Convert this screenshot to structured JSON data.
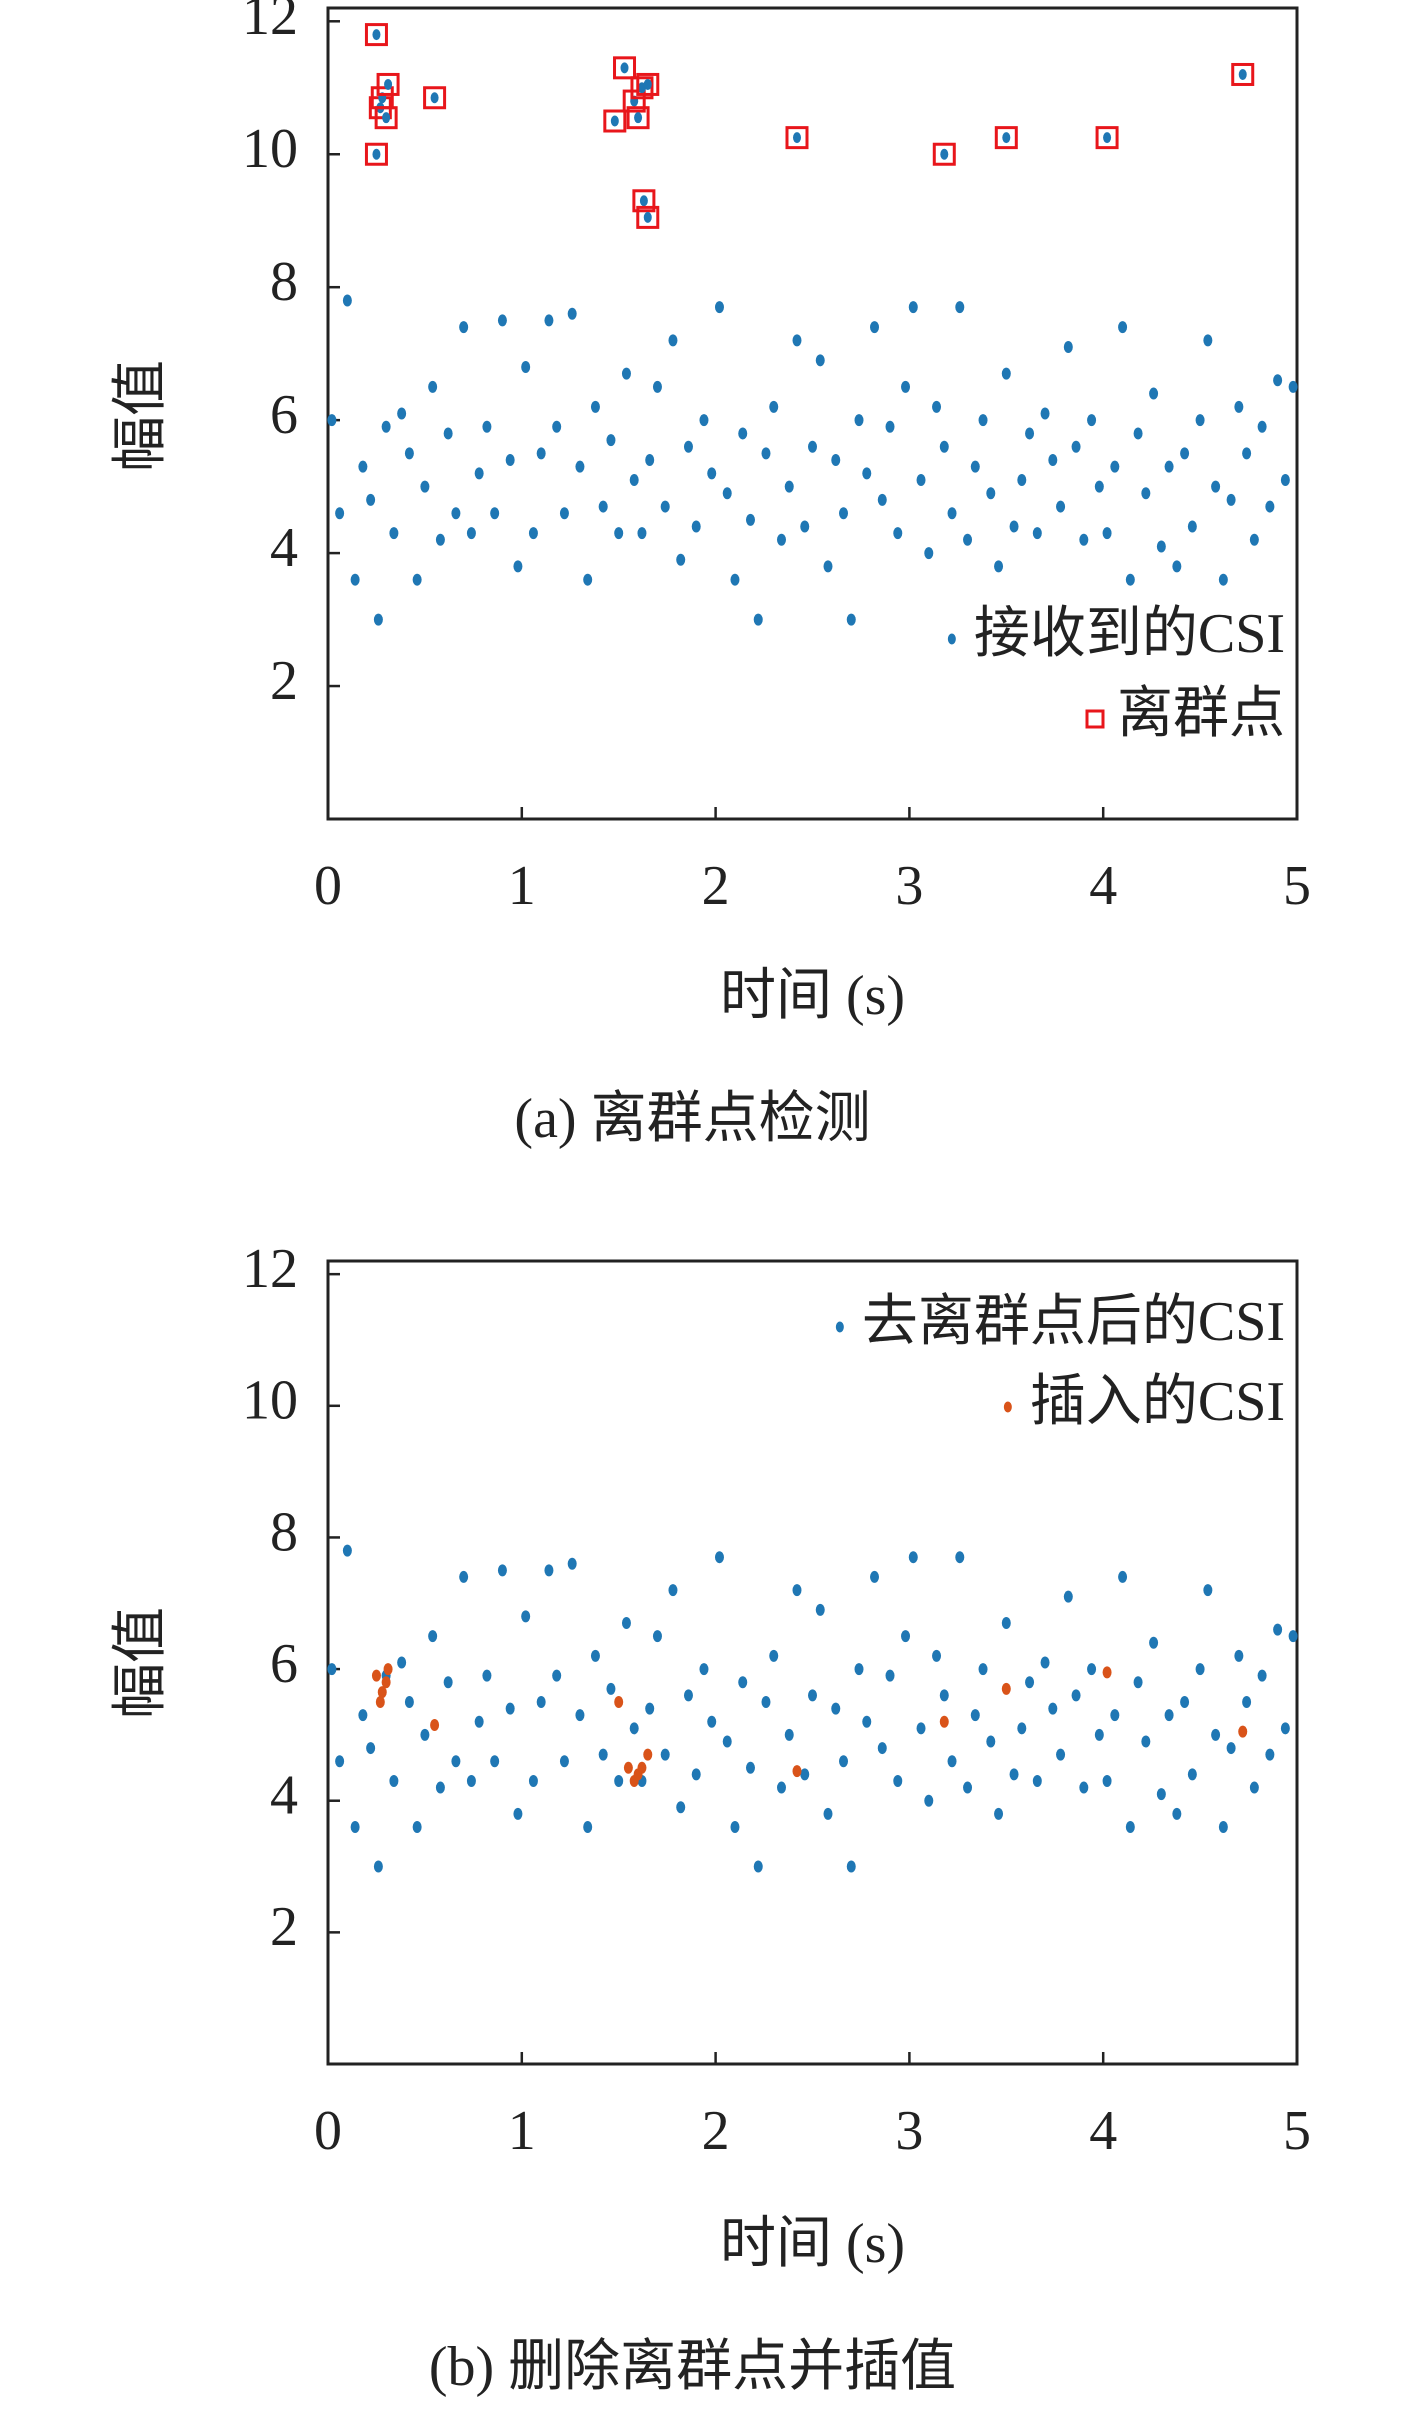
{
  "chart_data": [
    {
      "type": "scatter",
      "xlabel": "时间 (s)",
      "ylabel": "幅值",
      "caption": "(a) 离群点检测",
      "xlim": [
        0,
        5
      ],
      "ylim": [
        0,
        12.2
      ],
      "xticks": [
        0,
        1,
        2,
        3,
        4,
        5
      ],
      "yticks": [
        2,
        4,
        6,
        8,
        10,
        12
      ],
      "legend": "lower right",
      "series": [
        {
          "name": "接收到的CSI",
          "color": "#1f77b4",
          "marker": "dot",
          "x": [
            0.02,
            0.06,
            0.1,
            0.14,
            0.18,
            0.22,
            0.26,
            0.3,
            0.34,
            0.38,
            0.42,
            0.46,
            0.5,
            0.54,
            0.58,
            0.62,
            0.66,
            0.7,
            0.74,
            0.78,
            0.82,
            0.86,
            0.9,
            0.94,
            0.98,
            1.02,
            1.06,
            1.1,
            1.14,
            1.18,
            1.22,
            1.26,
            1.3,
            1.34,
            1.38,
            1.42,
            1.46,
            1.5,
            1.54,
            1.58,
            1.62,
            1.66,
            1.7,
            1.74,
            1.78,
            1.82,
            1.86,
            1.9,
            1.94,
            1.98,
            2.02,
            2.06,
            2.1,
            2.14,
            2.18,
            2.22,
            2.26,
            2.3,
            2.34,
            2.38,
            2.42,
            2.46,
            2.5,
            2.54,
            2.58,
            2.62,
            2.66,
            2.7,
            2.74,
            2.78,
            2.82,
            2.86,
            2.9,
            2.94,
            2.98,
            3.02,
            3.06,
            3.1,
            3.14,
            3.18,
            3.22,
            3.26,
            3.3,
            3.34,
            3.38,
            3.42,
            3.46,
            3.5,
            3.54,
            3.58,
            3.62,
            3.66,
            3.7,
            3.74,
            3.78,
            3.82,
            3.86,
            3.9,
            3.94,
            3.98,
            4.02,
            4.06,
            4.1,
            4.14,
            4.18,
            4.22,
            4.26,
            4.3,
            4.34,
            4.38,
            4.42,
            4.46,
            4.5,
            4.54,
            4.58,
            4.62,
            4.66,
            4.7,
            4.74,
            4.78,
            4.82,
            4.86,
            4.9,
            4.94,
            4.98
          ],
          "values": [
            6.0,
            4.6,
            7.8,
            3.6,
            5.3,
            4.8,
            3.0,
            5.9,
            4.3,
            6.1,
            5.5,
            3.6,
            5.0,
            6.5,
            4.2,
            5.8,
            4.6,
            7.4,
            4.3,
            5.2,
            5.9,
            4.6,
            7.5,
            5.4,
            3.8,
            6.8,
            4.3,
            5.5,
            7.5,
            5.9,
            4.6,
            7.6,
            5.3,
            3.6,
            6.2,
            4.7,
            5.7,
            4.3,
            6.7,
            5.1,
            4.3,
            5.4,
            6.5,
            4.7,
            7.2,
            3.9,
            5.6,
            4.4,
            6.0,
            5.2,
            7.7,
            4.9,
            3.6,
            5.8,
            4.5,
            3.0,
            5.5,
            6.2,
            4.2,
            5.0,
            7.2,
            4.4,
            5.6,
            6.9,
            3.8,
            5.4,
            4.6,
            3.0,
            6.0,
            5.2,
            7.4,
            4.8,
            5.9,
            4.3,
            6.5,
            7.7,
            5.1,
            4.0,
            6.2,
            5.6,
            4.6,
            7.7,
            4.2,
            5.3,
            6.0,
            4.9,
            3.8,
            6.7,
            4.4,
            5.1,
            5.8,
            4.3,
            6.1,
            5.4,
            4.7,
            7.1,
            5.6,
            4.2,
            6.0,
            5.0,
            4.3,
            5.3,
            7.4,
            3.6,
            5.8,
            4.9,
            6.4,
            4.1,
            5.3,
            3.8,
            5.5,
            4.4,
            6.0,
            7.2,
            5.0,
            3.6,
            4.8,
            6.2,
            5.5,
            4.2,
            5.9,
            4.7,
            6.6,
            5.1,
            6.5
          ]
        },
        {
          "name": "离群点",
          "color": "#e8161b",
          "marker": "square",
          "x": [
            0.25,
            0.27,
            0.28,
            0.3,
            0.31,
            0.25,
            0.55,
            1.48,
            1.53,
            1.58,
            1.6,
            1.62,
            1.65,
            1.63,
            1.65,
            2.42,
            3.18,
            3.5,
            4.02,
            4.72
          ],
          "values": [
            11.8,
            10.7,
            10.85,
            10.55,
            11.05,
            10.0,
            10.85,
            10.5,
            11.3,
            10.8,
            10.55,
            11.0,
            11.05,
            9.3,
            9.05,
            10.25,
            10.0,
            10.25,
            10.25,
            11.2
          ]
        }
      ]
    },
    {
      "type": "scatter",
      "xlabel": "时间 (s)",
      "ylabel": "幅值",
      "caption": "(b) 删除离群点并插值",
      "xlim": [
        0,
        5
      ],
      "ylim": [
        0,
        12.2
      ],
      "xticks": [
        0,
        1,
        2,
        3,
        4,
        5
      ],
      "yticks": [
        2,
        4,
        6,
        8,
        10,
        12
      ],
      "legend": "upper right",
      "series": [
        {
          "name": "去离群点后的CSI",
          "color": "#1f77b4",
          "marker": "dot",
          "x": [
            0.02,
            0.06,
            0.1,
            0.14,
            0.18,
            0.22,
            0.26,
            0.3,
            0.34,
            0.38,
            0.42,
            0.46,
            0.5,
            0.54,
            0.58,
            0.62,
            0.66,
            0.7,
            0.74,
            0.78,
            0.82,
            0.86,
            0.9,
            0.94,
            0.98,
            1.02,
            1.06,
            1.1,
            1.14,
            1.18,
            1.22,
            1.26,
            1.3,
            1.34,
            1.38,
            1.42,
            1.46,
            1.5,
            1.54,
            1.58,
            1.62,
            1.66,
            1.7,
            1.74,
            1.78,
            1.82,
            1.86,
            1.9,
            1.94,
            1.98,
            2.02,
            2.06,
            2.1,
            2.14,
            2.18,
            2.22,
            2.26,
            2.3,
            2.34,
            2.38,
            2.42,
            2.46,
            2.5,
            2.54,
            2.58,
            2.62,
            2.66,
            2.7,
            2.74,
            2.78,
            2.82,
            2.86,
            2.9,
            2.94,
            2.98,
            3.02,
            3.06,
            3.1,
            3.14,
            3.18,
            3.22,
            3.26,
            3.3,
            3.34,
            3.38,
            3.42,
            3.46,
            3.5,
            3.54,
            3.58,
            3.62,
            3.66,
            3.7,
            3.74,
            3.78,
            3.82,
            3.86,
            3.9,
            3.94,
            3.98,
            4.02,
            4.06,
            4.1,
            4.14,
            4.18,
            4.22,
            4.26,
            4.3,
            4.34,
            4.38,
            4.42,
            4.46,
            4.5,
            4.54,
            4.58,
            4.62,
            4.66,
            4.7,
            4.74,
            4.78,
            4.82,
            4.86,
            4.9,
            4.94,
            4.98
          ],
          "values": [
            6.0,
            4.6,
            7.8,
            3.6,
            5.3,
            4.8,
            3.0,
            5.9,
            4.3,
            6.1,
            5.5,
            3.6,
            5.0,
            6.5,
            4.2,
            5.8,
            4.6,
            7.4,
            4.3,
            5.2,
            5.9,
            4.6,
            7.5,
            5.4,
            3.8,
            6.8,
            4.3,
            5.5,
            7.5,
            5.9,
            4.6,
            7.6,
            5.3,
            3.6,
            6.2,
            4.7,
            5.7,
            4.3,
            6.7,
            5.1,
            4.3,
            5.4,
            6.5,
            4.7,
            7.2,
            3.9,
            5.6,
            4.4,
            6.0,
            5.2,
            7.7,
            4.9,
            3.6,
            5.8,
            4.5,
            3.0,
            5.5,
            6.2,
            4.2,
            5.0,
            7.2,
            4.4,
            5.6,
            6.9,
            3.8,
            5.4,
            4.6,
            3.0,
            6.0,
            5.2,
            7.4,
            4.8,
            5.9,
            4.3,
            6.5,
            7.7,
            5.1,
            4.0,
            6.2,
            5.6,
            4.6,
            7.7,
            4.2,
            5.3,
            6.0,
            4.9,
            3.8,
            6.7,
            4.4,
            5.1,
            5.8,
            4.3,
            6.1,
            5.4,
            4.7,
            7.1,
            5.6,
            4.2,
            6.0,
            5.0,
            4.3,
            5.3,
            7.4,
            3.6,
            5.8,
            4.9,
            6.4,
            4.1,
            5.3,
            3.8,
            5.5,
            4.4,
            6.0,
            7.2,
            5.0,
            3.6,
            4.8,
            6.2,
            5.5,
            4.2,
            5.9,
            4.7,
            6.6,
            5.1,
            6.5
          ]
        },
        {
          "name": "插入的CSI",
          "color": "#d95319",
          "marker": "dot",
          "x": [
            0.25,
            0.27,
            0.28,
            0.3,
            0.31,
            0.55,
            1.5,
            1.55,
            1.58,
            1.6,
            1.62,
            1.65,
            2.42,
            3.18,
            3.5,
            4.02,
            4.72
          ],
          "values": [
            5.9,
            5.5,
            5.65,
            5.8,
            6.0,
            5.15,
            5.5,
            4.5,
            4.3,
            4.4,
            4.5,
            4.7,
            4.45,
            5.2,
            5.7,
            5.95,
            5.05
          ]
        }
      ]
    }
  ]
}
